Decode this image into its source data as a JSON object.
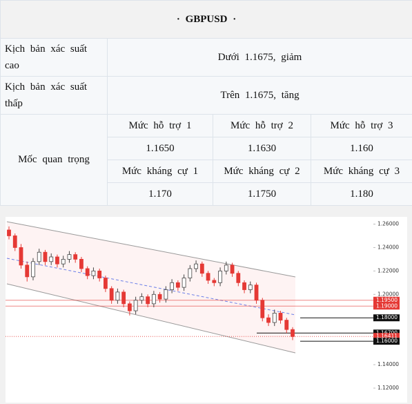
{
  "header": {
    "title": "· GBPUSD ·"
  },
  "rows": [
    {
      "label": "Kịch bản xác suất cao",
      "value": "Dưới 1.1675, giảm"
    },
    {
      "label": "Kịch bản xác suất thấp",
      "value": "Trên 1.1675, tăng"
    }
  ],
  "levels": {
    "label": "Mốc quan trọng",
    "support": [
      {
        "name": "Mức hỗ trợ 1",
        "value": "1.1650"
      },
      {
        "name": "Mức hỗ trợ 2",
        "value": "1.1630"
      },
      {
        "name": "Mức hỗ trợ 3",
        "value": "1.160"
      }
    ],
    "resistance": [
      {
        "name": "Mức kháng cự 1",
        "value": "1.170"
      },
      {
        "name": "Mức kháng cự 2",
        "value": "1.1750"
      },
      {
        "name": "Mức kháng cự 3",
        "value": "1.180"
      }
    ]
  },
  "chart_data": {
    "type": "candlestick",
    "ylim": [
      1.1082,
      1.2662
    ],
    "yticks": [
      {
        "value": 1.26,
        "label": "1.26000"
      },
      {
        "value": 1.24,
        "label": "1.24000"
      },
      {
        "value": 1.22,
        "label": "1.22000"
      },
      {
        "value": 1.2,
        "label": "1.20000"
      },
      {
        "value": 1.14,
        "label": "1.14000"
      },
      {
        "value": 1.12,
        "label": "1.12000"
      }
    ],
    "price_lines": [
      {
        "value": 1.195,
        "label": "1.19500",
        "color": "#e53935"
      },
      {
        "value": 1.19,
        "label": "1.19000",
        "color": "#e53935"
      },
      {
        "value": 1.18,
        "label": "1.18000",
        "color": "#111111"
      },
      {
        "value": 1.167,
        "label": "1.16700",
        "color": "#111111"
      },
      {
        "value": 1.16411,
        "label": "1.16411",
        "color": "#e53935"
      },
      {
        "value": 1.16,
        "label": "1.16000",
        "color": "#111111"
      }
    ],
    "candles": [
      [
        1.255,
        1.258,
        1.247,
        1.25
      ],
      [
        1.25,
        1.252,
        1.237,
        1.24
      ],
      [
        1.24,
        1.243,
        1.222,
        1.225
      ],
      [
        1.225,
        1.228,
        1.211,
        1.215
      ],
      [
        1.215,
        1.231,
        1.212,
        1.228
      ],
      [
        1.228,
        1.239,
        1.225,
        1.236
      ],
      [
        1.236,
        1.238,
        1.225,
        1.228
      ],
      [
        1.228,
        1.235,
        1.225,
        1.232
      ],
      [
        1.232,
        1.234,
        1.223,
        1.226
      ],
      [
        1.226,
        1.233,
        1.223,
        1.23
      ],
      [
        1.23,
        1.237,
        1.227,
        1.234
      ],
      [
        1.234,
        1.236,
        1.227,
        1.23
      ],
      [
        1.23,
        1.232,
        1.219,
        1.222
      ],
      [
        1.222,
        1.224,
        1.213,
        1.216
      ],
      [
        1.216,
        1.223,
        1.213,
        1.22
      ],
      [
        1.22,
        1.222,
        1.211,
        1.214
      ],
      [
        1.214,
        1.216,
        1.202,
        1.205
      ],
      [
        1.205,
        1.207,
        1.192,
        1.195
      ],
      [
        1.195,
        1.205,
        1.192,
        1.202
      ],
      [
        1.202,
        1.204,
        1.189,
        1.192
      ],
      [
        1.192,
        1.194,
        1.182,
        1.186
      ],
      [
        1.186,
        1.198,
        1.183,
        1.195
      ],
      [
        1.195,
        1.201,
        1.192,
        1.198
      ],
      [
        1.198,
        1.2,
        1.189,
        1.192
      ],
      [
        1.192,
        1.203,
        1.189,
        1.2
      ],
      [
        1.2,
        1.202,
        1.193,
        1.196
      ],
      [
        1.196,
        1.207,
        1.193,
        1.204
      ],
      [
        1.204,
        1.213,
        1.201,
        1.21
      ],
      [
        1.21,
        1.212,
        1.203,
        1.206
      ],
      [
        1.206,
        1.217,
        1.203,
        1.214
      ],
      [
        1.214,
        1.225,
        1.211,
        1.222
      ],
      [
        1.222,
        1.229,
        1.219,
        1.226
      ],
      [
        1.226,
        1.228,
        1.215,
        1.218
      ],
      [
        1.218,
        1.22,
        1.209,
        1.212
      ],
      [
        1.212,
        1.214,
        1.207,
        1.21
      ],
      [
        1.21,
        1.223,
        1.207,
        1.22
      ],
      [
        1.22,
        1.228,
        1.217,
        1.225
      ],
      [
        1.225,
        1.227,
        1.215,
        1.218
      ],
      [
        1.218,
        1.22,
        1.207,
        1.21
      ],
      [
        1.21,
        1.212,
        1.201,
        1.204
      ],
      [
        1.204,
        1.211,
        1.201,
        1.208
      ],
      [
        1.208,
        1.21,
        1.192,
        1.195
      ],
      [
        1.195,
        1.197,
        1.177,
        1.18
      ],
      [
        1.18,
        1.183,
        1.173,
        1.176
      ],
      [
        1.176,
        1.187,
        1.173,
        1.184
      ],
      [
        1.184,
        1.186,
        1.175,
        1.178
      ],
      [
        1.178,
        1.18,
        1.167,
        1.17
      ],
      [
        1.17,
        1.172,
        1.161,
        1.164
      ]
    ]
  }
}
